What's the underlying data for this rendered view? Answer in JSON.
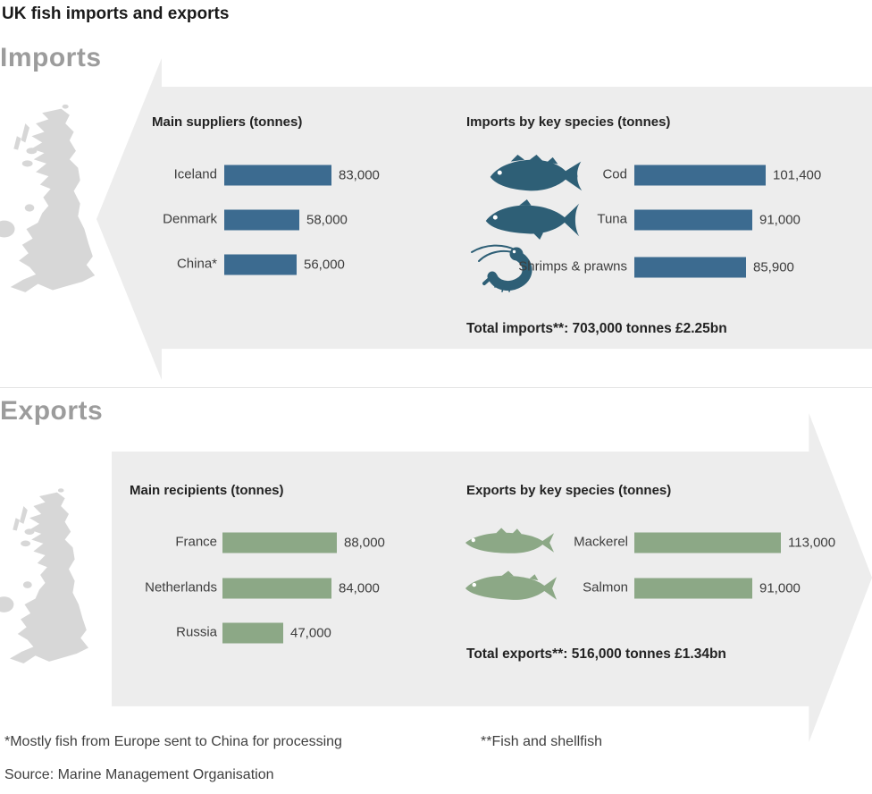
{
  "page_title": "UK fish imports and exports",
  "colors": {
    "import_bar": "#3c6b90",
    "import_fish": "#2e5f76",
    "export_bar": "#8ca886",
    "export_fish": "#8ca886",
    "arrow_bg": "#ededed",
    "map_fill": "#d7d7d7",
    "section_heading": "#9c9c9c"
  },
  "sections": {
    "imports": {
      "heading": "Imports",
      "total": "Total imports**: 703,000 tonnes £2.25bn"
    },
    "exports": {
      "heading": "Exports",
      "total": "Total exports**: 516,000 tonnes £1.34bn"
    }
  },
  "chart_data": [
    {
      "type": "bar",
      "section": "imports",
      "title": "Main suppliers (tonnes)",
      "orientation": "horizontal",
      "unit": "tonnes",
      "categories": [
        "Iceland",
        "Denmark",
        "China*"
      ],
      "values": [
        83000,
        58000,
        56000
      ],
      "value_labels": [
        "83,000",
        "58,000",
        "56,000"
      ]
    },
    {
      "type": "bar",
      "section": "imports",
      "title": "Imports by key species (tonnes)",
      "orientation": "horizontal",
      "unit": "tonnes",
      "categories": [
        "Cod",
        "Tuna",
        "Shrimps & prawns"
      ],
      "values": [
        101400,
        91000,
        85900
      ],
      "value_labels": [
        "101,400",
        "91,000",
        "85,900"
      ],
      "icons": [
        "cod-icon",
        "tuna-icon",
        "shrimp-icon"
      ]
    },
    {
      "type": "bar",
      "section": "exports",
      "title": "Main recipients (tonnes)",
      "orientation": "horizontal",
      "unit": "tonnes",
      "categories": [
        "France",
        "Netherlands",
        "Russia"
      ],
      "values": [
        88000,
        84000,
        47000
      ],
      "value_labels": [
        "88,000",
        "84,000",
        "47,000"
      ]
    },
    {
      "type": "bar",
      "section": "exports",
      "title": "Exports by key species (tonnes)",
      "orientation": "horizontal",
      "unit": "tonnes",
      "categories": [
        "Mackerel",
        "Salmon"
      ],
      "values": [
        113000,
        91000
      ],
      "value_labels": [
        "113,000",
        "91,000"
      ],
      "icons": [
        "mackerel-icon",
        "salmon-icon"
      ]
    }
  ],
  "icons": {
    "cod": "fish-silhouette",
    "tuna": "fish-silhouette",
    "shrimp": "shrimp-silhouette",
    "mackerel": "fish-silhouette",
    "salmon": "fish-silhouette",
    "uk_map": "great-britain-silhouette",
    "imports_arrow": "left-arrow-shape",
    "exports_arrow": "right-arrow-shape"
  },
  "footnotes": {
    "china": "*Mostly fish from Europe sent to China for processing",
    "shellfish": "**Fish and shellfish"
  },
  "source": "Source: Marine Management Organisation"
}
